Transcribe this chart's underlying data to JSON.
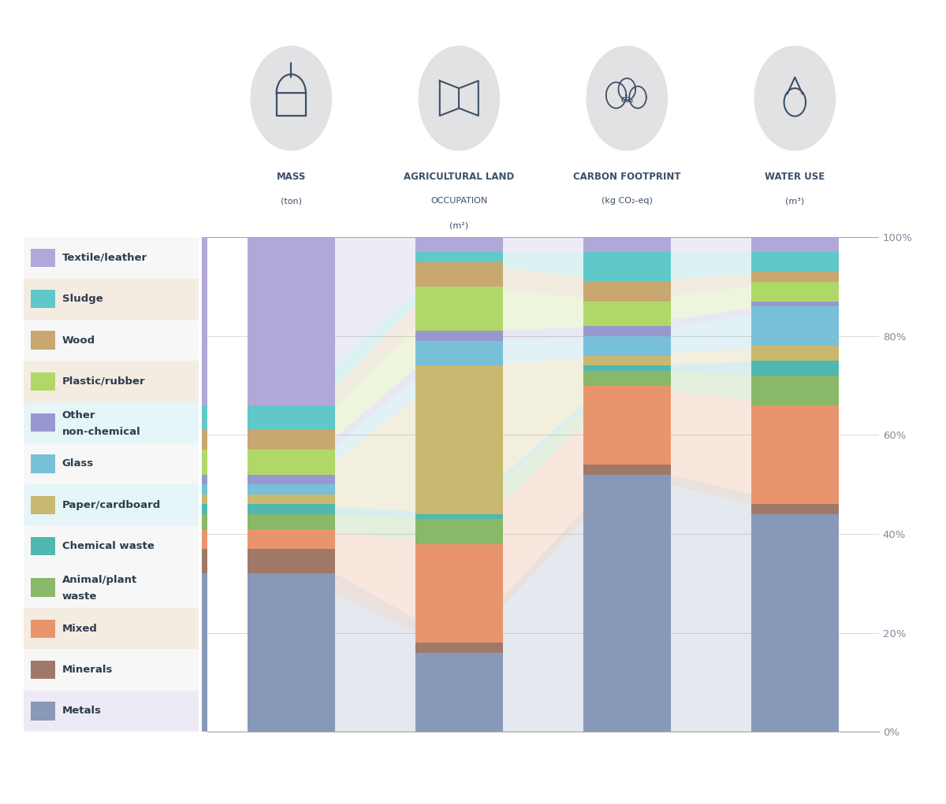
{
  "materials": [
    "Metals",
    "Minerals",
    "Mixed",
    "Animal/plant waste",
    "Chemical waste",
    "Paper/cardboard",
    "Glass",
    "Other non-chemical",
    "Plastic/rubber",
    "Wood",
    "Sludge",
    "Textile/leather"
  ],
  "colors": [
    "#8898b8",
    "#a07868",
    "#e8956d",
    "#88b868",
    "#50b8b0",
    "#c8b870",
    "#78c0d8",
    "#9898d0",
    "#b0d868",
    "#c8a870",
    "#60c8c8",
    "#b0a8d8"
  ],
  "data_mass": [
    32,
    5,
    4,
    3,
    2,
    2,
    2,
    2,
    5,
    4,
    5,
    34
  ],
  "data_land": [
    16,
    2,
    20,
    5,
    1,
    30,
    5,
    2,
    9,
    5,
    2,
    3
  ],
  "data_carbon": [
    52,
    2,
    16,
    3,
    1,
    2,
    4,
    2,
    5,
    4,
    6,
    3
  ],
  "data_water": [
    44,
    2,
    20,
    6,
    3,
    3,
    8,
    1,
    4,
    2,
    4,
    3
  ],
  "legend_bgs": [
    "#edeaf5",
    "#f7f7f7",
    "#f4ebe1",
    "#f7f7f7",
    "#f7f7f7",
    "#e6f5f7",
    "#f7f7f7",
    "#e6f5f7",
    "#f4ebe1",
    "#f7f7f7",
    "#f4ebe1",
    "#f7f7f7"
  ],
  "cat_labels_line1": [
    "MASS",
    "AGRICULTURAL LAND",
    "CARBON FOOTPRINT",
    "WATER USE"
  ],
  "cat_labels_line2": [
    "(ton)",
    "OCCUPATION",
    "(kg CO₂-eq)",
    "(m³)"
  ],
  "cat_labels_line3": [
    "",
    "(m²)",
    "",
    ""
  ],
  "icon_circle_color": "#e2e2e4",
  "icon_line_color": "#3d5068",
  "axis_tick_color": "#888899",
  "grid_color": "#d8d8d8",
  "spine_color": "#aaaaaa",
  "background": "#ffffff",
  "ribbon_alpha": 0.22,
  "bar_width": 0.52
}
